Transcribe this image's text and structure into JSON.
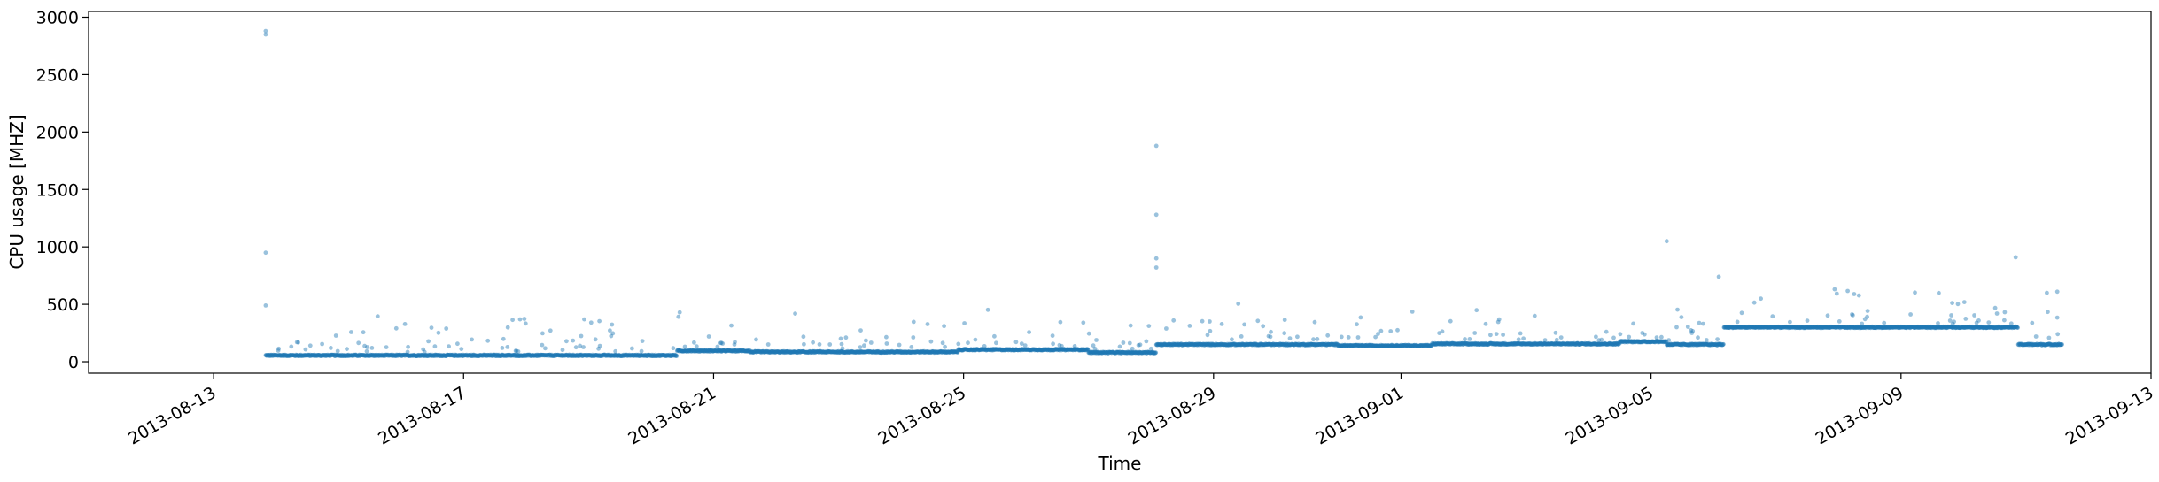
{
  "chart_data": {
    "type": "scatter",
    "xlabel": "Time",
    "ylabel": "CPU usage [MHZ]",
    "x_axis": {
      "type": "date",
      "range": [
        "2013-08-11",
        "2013-09-13"
      ],
      "ticks": [
        "2013-08-13",
        "2013-08-17",
        "2013-08-21",
        "2013-08-25",
        "2013-08-29",
        "2013-09-01",
        "2013-09-05",
        "2013-09-09",
        "2013-09-13"
      ]
    },
    "y_axis": {
      "range": [
        -100,
        3050
      ],
      "ticks": [
        0,
        500,
        1000,
        1500,
        2000,
        2500,
        3000
      ]
    },
    "grid": false,
    "legend": "none",
    "series": [
      {
        "color": "#1f77b4",
        "alpha": 0.45,
        "baseline_segments": [
          {
            "start": "2013-08-13T20:00",
            "end": "2013-08-20T10:00",
            "value": 55
          },
          {
            "start": "2013-08-20T10:00",
            "end": "2013-08-21T14:00",
            "value": 95
          },
          {
            "start": "2013-08-21T14:00",
            "end": "2013-08-24T22:00",
            "value": 85
          },
          {
            "start": "2013-08-24T22:00",
            "end": "2013-08-27T00:00",
            "value": 105
          },
          {
            "start": "2013-08-27T00:00",
            "end": "2013-08-28T02:00",
            "value": 80
          },
          {
            "start": "2013-08-28T02:00",
            "end": "2013-08-31T00:00",
            "value": 150
          },
          {
            "start": "2013-08-31T00:00",
            "end": "2013-09-01T12:00",
            "value": 140
          },
          {
            "start": "2013-09-01T12:00",
            "end": "2013-09-04T12:00",
            "value": 155
          },
          {
            "start": "2013-09-04T12:00",
            "end": "2013-09-05T06:00",
            "value": 175
          },
          {
            "start": "2013-09-05T06:00",
            "end": "2013-09-06T04:00",
            "value": 150
          },
          {
            "start": "2013-09-06T04:00",
            "end": "2013-09-10T21:00",
            "value": 300
          },
          {
            "start": "2013-09-10T21:00",
            "end": "2013-09-11T14:00",
            "value": 150
          }
        ],
        "outliers": [
          {
            "x": "2013-08-13T20:00",
            "y": 2880
          },
          {
            "x": "2013-08-13T20:00",
            "y": 2850
          },
          {
            "x": "2013-08-13T20:00",
            "y": 950
          },
          {
            "x": "2013-08-13T20:00",
            "y": 490
          },
          {
            "x": "2013-08-14T08:00",
            "y": 170
          },
          {
            "x": "2013-08-20T11:00",
            "y": 430
          },
          {
            "x": "2013-08-28T02:00",
            "y": 1880
          },
          {
            "x": "2013-08-28T02:00",
            "y": 1280
          },
          {
            "x": "2013-08-28T02:00",
            "y": 900
          },
          {
            "x": "2013-08-28T02:00",
            "y": 820
          },
          {
            "x": "2013-09-05T06:00",
            "y": 1050
          },
          {
            "x": "2013-09-06T02:00",
            "y": 740
          },
          {
            "x": "2013-09-10T20:00",
            "y": 910
          },
          {
            "x": "2013-09-11T08:00",
            "y": 600
          },
          {
            "x": "2013-09-11T12:00",
            "y": 610
          }
        ]
      }
    ]
  }
}
